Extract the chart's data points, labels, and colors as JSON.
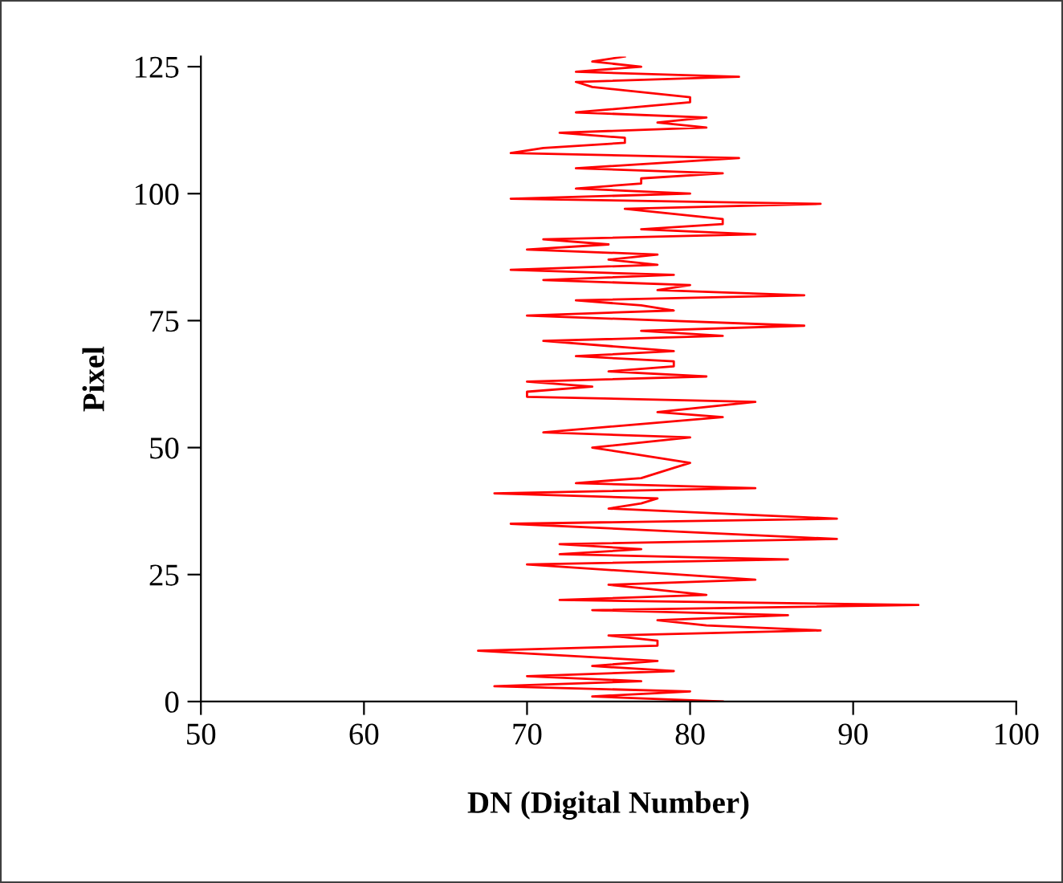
{
  "chart_data": {
    "type": "line",
    "xlabel": "DN (Digital Number)",
    "ylabel": "Pixel",
    "xlim": [
      50,
      100
    ],
    "xticks": [
      50,
      60,
      70,
      80,
      90,
      100
    ],
    "ylim": [
      0,
      127
    ],
    "yticks": [
      0,
      25,
      50,
      75,
      100,
      125
    ],
    "grid": false,
    "legend": false,
    "marker": "none",
    "line_style": "solid",
    "series": [
      {
        "color": "#ff0000",
        "x": [
          82,
          74,
          80,
          68,
          77,
          70,
          79,
          74,
          78,
          67,
          78,
          78,
          75,
          88,
          81,
          78,
          86,
          74,
          94,
          72,
          81,
          75,
          84,
          70,
          86,
          72,
          77,
          72,
          89,
          69,
          89,
          75,
          77,
          78,
          68,
          84,
          73,
          77,
          79,
          80,
          76,
          74,
          80,
          71,
          82,
          78,
          84,
          70,
          70,
          74,
          70,
          81,
          75,
          79,
          79,
          73,
          79,
          71,
          82,
          77,
          87,
          70,
          79,
          77,
          73,
          87,
          78,
          80,
          71,
          79,
          69,
          78,
          75,
          78,
          70,
          75,
          71,
          84,
          77,
          82,
          82,
          76,
          88,
          69,
          80,
          73,
          77,
          77,
          82,
          73,
          83,
          69,
          71,
          76,
          76,
          72,
          81,
          78,
          81,
          73,
          80,
          80,
          74,
          73,
          83,
          73,
          77,
          74,
          76
        ],
        "values": [
          0,
          1,
          2,
          3,
          4,
          5,
          6,
          7,
          8,
          10,
          11,
          12,
          13,
          14,
          15,
          16,
          17,
          18,
          19,
          20,
          21,
          23,
          24,
          27,
          28,
          29,
          30,
          31,
          32,
          35,
          36,
          38,
          39,
          40,
          41,
          42,
          43,
          44,
          46,
          47,
          49,
          50,
          52,
          53,
          56,
          57,
          59,
          60,
          61,
          62,
          63,
          64,
          65,
          66,
          67,
          68,
          69,
          71,
          72,
          73,
          74,
          76,
          77,
          78,
          79,
          80,
          81,
          82,
          83,
          84,
          85,
          86,
          87,
          88,
          89,
          90,
          91,
          92,
          93,
          94,
          95,
          97,
          98,
          99,
          100,
          101,
          102,
          103,
          104,
          105,
          107,
          108,
          109,
          110,
          111,
          112,
          113,
          114,
          115,
          116,
          118,
          119,
          121,
          122,
          123,
          124,
          125,
          126,
          127
        ]
      }
    ]
  }
}
